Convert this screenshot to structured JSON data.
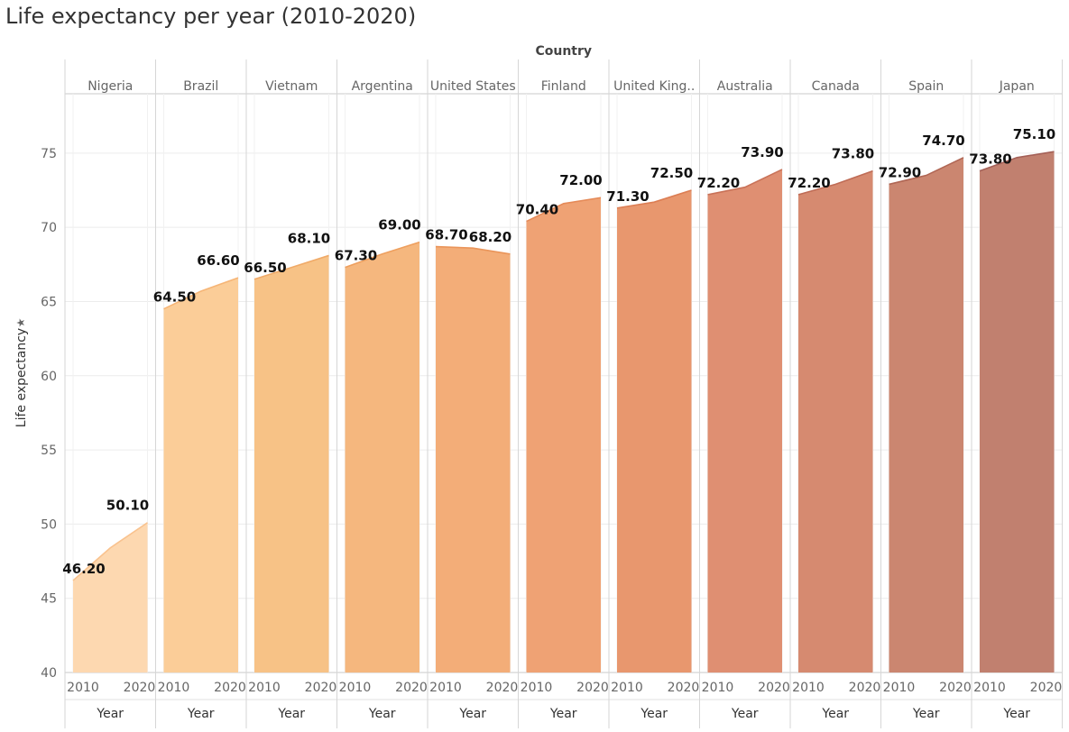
{
  "title": "Life expectancy per year (2010-2020)",
  "colors": {
    "fills": [
      "#FDD8B0",
      "#FBCD98",
      "#F7C286",
      "#F5B77E",
      "#F3AD78",
      "#EFA274",
      "#E8976E",
      "#DF8F72",
      "#D68A70",
      "#CB8670",
      "#C1806F"
    ],
    "strokes": [
      "#F9C28E",
      "#F6B576",
      "#F0AA68",
      "#EE9F5E",
      "#EA955A",
      "#E58A58",
      "#DC7E54",
      "#C97258",
      "#BF6C56",
      "#B06654",
      "#A46057"
    ]
  },
  "chart_data": {
    "type": "area",
    "title": "Life expectancy per year (2010-2020)",
    "column_header": "Country",
    "ylabel": "Life expectancy",
    "xlabel": "Year",
    "ylim": [
      40,
      79
    ],
    "yticks": [
      40,
      45,
      50,
      55,
      60,
      65,
      70,
      75
    ],
    "x_ticks": [
      "2010",
      "2020"
    ],
    "x_range": [
      2010,
      2020
    ],
    "grid": true,
    "panels": [
      {
        "name": "Nigeria",
        "x": [
          2010,
          2015,
          2020
        ],
        "y": [
          46.2,
          48.4,
          50.1
        ],
        "labels": [
          "46.20",
          "50.10"
        ]
      },
      {
        "name": "Brazil",
        "x": [
          2010,
          2015,
          2020
        ],
        "y": [
          64.5,
          65.7,
          66.6
        ],
        "labels": [
          "64.50",
          "66.60"
        ]
      },
      {
        "name": "Vietnam",
        "x": [
          2010,
          2015,
          2020
        ],
        "y": [
          66.5,
          67.3,
          68.1
        ],
        "labels": [
          "66.50",
          "68.10"
        ]
      },
      {
        "name": "Argentina",
        "x": [
          2010,
          2015,
          2020
        ],
        "y": [
          67.3,
          68.2,
          69.0
        ],
        "labels": [
          "67.30",
          "69.00"
        ]
      },
      {
        "name": "United States",
        "x": [
          2010,
          2015,
          2020
        ],
        "y": [
          68.7,
          68.6,
          68.2
        ],
        "labels": [
          "68.70",
          "68.20"
        ]
      },
      {
        "name": "Finland",
        "x": [
          2010,
          2015,
          2020
        ],
        "y": [
          70.4,
          71.6,
          72.0
        ],
        "labels": [
          "70.40",
          "72.00"
        ]
      },
      {
        "name": "United King..",
        "x": [
          2010,
          2015,
          2020
        ],
        "y": [
          71.3,
          71.7,
          72.5
        ],
        "labels": [
          "71.30",
          "72.50"
        ]
      },
      {
        "name": "Australia",
        "x": [
          2010,
          2015,
          2020
        ],
        "y": [
          72.2,
          72.7,
          73.9
        ],
        "labels": [
          "72.20",
          "73.90"
        ]
      },
      {
        "name": "Canada",
        "x": [
          2010,
          2015,
          2020
        ],
        "y": [
          72.2,
          72.9,
          73.8
        ],
        "labels": [
          "72.20",
          "73.80"
        ]
      },
      {
        "name": "Spain",
        "x": [
          2010,
          2015,
          2020
        ],
        "y": [
          72.9,
          73.5,
          74.7
        ],
        "labels": [
          "72.90",
          "74.70"
        ]
      },
      {
        "name": "Japan",
        "x": [
          2010,
          2015,
          2020
        ],
        "y": [
          73.8,
          74.7,
          75.1
        ],
        "labels": [
          "73.80",
          "75.10"
        ]
      }
    ]
  }
}
